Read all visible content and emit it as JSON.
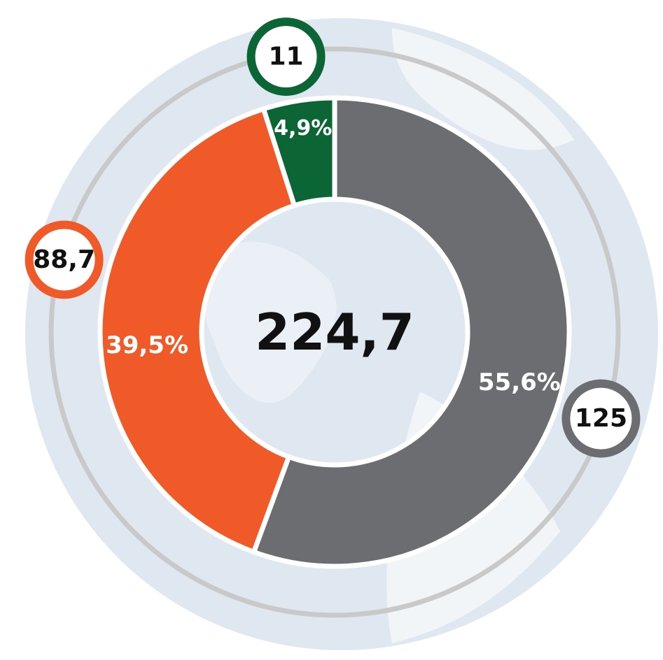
{
  "chart_data": {
    "type": "donut",
    "categories": [
      null,
      null,
      null
    ],
    "values": [
      55.6,
      39.5,
      4.9
    ],
    "value_labels": [
      "55,6%",
      "39,5%",
      "4,9%"
    ],
    "amounts": [
      125,
      88.7,
      11
    ],
    "amount_labels": [
      "125",
      "88,7",
      "11"
    ],
    "colors": [
      "#6b6d70",
      "#f05a28",
      "#0b6535"
    ],
    "total": 224.7,
    "total_label": "224,7"
  }
}
